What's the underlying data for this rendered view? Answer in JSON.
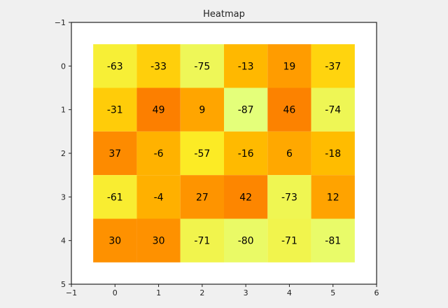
{
  "chart_data": {
    "type": "heatmap",
    "title": "Heatmap",
    "xlabel": "",
    "ylabel": "",
    "x_ticks": [
      "−1",
      "0",
      "1",
      "2",
      "3",
      "4",
      "5",
      "6"
    ],
    "y_ticks": [
      "−1",
      "0",
      "1",
      "2",
      "3",
      "4",
      "5"
    ],
    "xlim": [
      -1,
      6
    ],
    "ylim": [
      5,
      -1
    ],
    "columns": [
      0,
      1,
      2,
      3,
      4,
      5
    ],
    "rows": [
      0,
      1,
      2,
      3,
      4
    ],
    "values": [
      [
        -63,
        -33,
        -75,
        -13,
        19,
        -37
      ],
      [
        -31,
        49,
        9,
        -87,
        46,
        -74
      ],
      [
        37,
        -6,
        -57,
        -16,
        6,
        -18
      ],
      [
        -61,
        -4,
        27,
        42,
        -73,
        12
      ],
      [
        30,
        30,
        -71,
        -80,
        -71,
        -81
      ]
    ],
    "colormap": "Wistia",
    "grid": false,
    "colors": {
      "background": "#f0f0f0",
      "plot_area": "#ffffff",
      "axes": "#222222"
    }
  }
}
